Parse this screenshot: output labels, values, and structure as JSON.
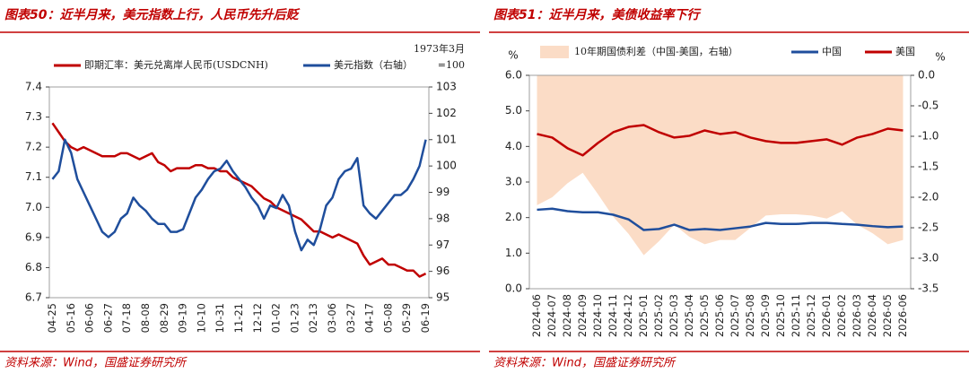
{
  "chart_data": [
    {
      "type": "line",
      "title": "图表50：近半月来，美元指数上行，人民币先升后贬",
      "source": "资料来源：Wind，国盛证券研究所",
      "y2_note": [
        "1973年3月",
        "=100"
      ],
      "categories": [
        "04-25",
        null,
        null,
        "05-16",
        null,
        null,
        "06-06",
        null,
        null,
        "06-27",
        null,
        null,
        "07-18",
        null,
        null,
        "08-08",
        null,
        null,
        "08-29",
        null,
        null,
        "09-19",
        null,
        null,
        "10-10",
        null,
        null,
        "10-31",
        null,
        null,
        "11-21",
        null,
        null,
        "12-12",
        null,
        null,
        "01-02",
        null,
        null,
        "01-23",
        null,
        null,
        "02-13",
        null,
        null,
        "03-06",
        null,
        null,
        "03-27",
        null,
        null,
        "04-17",
        null,
        null,
        "05-08",
        null,
        null,
        "05-29",
        null,
        null,
        "06-19"
      ],
      "series": [
        {
          "name": "即期汇率：美元兑离岸人民币(USDCNH)",
          "color": "#c00000",
          "values": [
            7.28,
            7.25,
            7.22,
            7.2,
            7.19,
            7.2,
            7.19,
            7.18,
            7.17,
            7.17,
            7.17,
            7.18,
            7.18,
            7.17,
            7.16,
            7.17,
            7.18,
            7.15,
            7.14,
            7.12,
            7.13,
            7.13,
            7.13,
            7.14,
            7.14,
            7.13,
            7.13,
            7.12,
            7.12,
            7.1,
            7.09,
            7.08,
            7.07,
            7.05,
            7.03,
            7.02,
            7.0,
            6.99,
            6.98,
            6.97,
            6.96,
            6.94,
            6.92,
            6.92,
            6.91,
            6.9,
            6.91,
            6.9,
            6.89,
            6.88,
            6.84,
            6.81,
            6.82,
            6.83,
            6.81,
            6.81,
            6.8,
            6.79,
            6.79,
            6.77,
            6.78
          ]
        },
        {
          "name": "美元指数（右轴）",
          "color": "#1f4e9c",
          "axis": "y2",
          "values": [
            99.5,
            99.8,
            101,
            100.5,
            99.5,
            99,
            98.5,
            98,
            97.5,
            97.3,
            97.5,
            98,
            98.2,
            98.8,
            98.5,
            98.3,
            98,
            97.8,
            97.8,
            97.5,
            97.5,
            97.6,
            98.2,
            98.8,
            99.1,
            99.5,
            99.8,
            99.9,
            100.2,
            99.8,
            99.5,
            99.2,
            98.8,
            98.5,
            98,
            98.5,
            98.4,
            98.9,
            98.5,
            97.5,
            96.8,
            97.2,
            97,
            97.6,
            98.5,
            98.8,
            99.5,
            99.8,
            99.9,
            100.3,
            98.5,
            98.2,
            98,
            98.3,
            98.6,
            98.9,
            98.9,
            99.1,
            99.5,
            100,
            101
          ]
        }
      ],
      "ylim": [
        6.7,
        7.4
      ],
      "yticks": [
        6.7,
        6.8,
        6.9,
        {
          "value": 7,
          "label": "7.0"
        },
        7.1,
        7.2,
        7.3,
        7.4
      ],
      "y2lim": [
        95,
        103
      ],
      "y2ticks": [
        95,
        96,
        97,
        98,
        99,
        100,
        101,
        102,
        103
      ]
    },
    {
      "type": "line",
      "title": "图表51：近半月来，美债收益率下行",
      "source": "资料来源：Wind，国盛证券研究所",
      "ylabel": "%",
      "y2label": "%",
      "categories": [
        "2024-06",
        "2024-07",
        "2024-08",
        "2024-09",
        "2024-10",
        "2024-11",
        "2024-12",
        "2025-01",
        "2025-02",
        "2025-03",
        "2025-04",
        "2025-05",
        "2025-06",
        "2025-07",
        "2025-08",
        "2025-09",
        "2025-10",
        "2025-11",
        "2025-12",
        "2026-01",
        "2026-02",
        "2026-03",
        "2026-04",
        "2026-05",
        "2026-06"
      ],
      "series": [
        {
          "name": "10年期国债利差（中国-美国，右轴）",
          "color": "#fbdcc6",
          "kind": "area",
          "axis": "y2",
          "values": [
            -2.13,
            -2.0,
            -1.77,
            -1.6,
            -1.95,
            -2.32,
            -2.6,
            -2.95,
            -2.72,
            -2.45,
            -2.65,
            -2.77,
            -2.7,
            -2.7,
            -2.5,
            -2.3,
            -2.28,
            -2.28,
            -2.3,
            -2.35,
            -2.23,
            -2.45,
            -2.59,
            -2.77,
            -2.7
          ]
        },
        {
          "name": "中国",
          "color": "#1f4e9c",
          "values": [
            2.22,
            2.25,
            2.18,
            2.15,
            2.15,
            2.08,
            1.95,
            1.65,
            1.68,
            1.8,
            1.65,
            1.68,
            1.65,
            1.7,
            1.75,
            1.85,
            1.82,
            1.82,
            1.85,
            1.85,
            1.82,
            1.8,
            1.76,
            1.73,
            1.75
          ]
        },
        {
          "name": "美国",
          "color": "#c00000",
          "values": [
            4.35,
            4.25,
            3.95,
            3.75,
            4.1,
            4.4,
            4.55,
            4.6,
            4.4,
            4.25,
            4.3,
            4.45,
            4.35,
            4.4,
            4.25,
            4.15,
            4.1,
            4.1,
            4.15,
            4.2,
            4.05,
            4.25,
            4.35,
            4.5,
            4.45
          ]
        }
      ],
      "ylim": [
        0,
        6
      ],
      "yticks": [
        {
          "value": 0,
          "label": "0.0"
        },
        {
          "value": 1,
          "label": "1.0"
        },
        {
          "value": 2,
          "label": "2.0"
        },
        {
          "value": 3,
          "label": "3.0"
        },
        {
          "value": 4,
          "label": "4.0"
        },
        {
          "value": 5,
          "label": "5.0"
        },
        {
          "value": 6,
          "label": "6.0"
        }
      ],
      "y2lim": [
        -3.5,
        0
      ],
      "y2ticks": [
        -3.5,
        {
          "value": -3,
          "label": "-3.0"
        },
        -2.5,
        {
          "value": -2,
          "label": "-2.0"
        },
        -1.5,
        {
          "value": -1,
          "label": "-1.0"
        },
        -0.5,
        {
          "value": 0,
          "label": "0.0"
        }
      ]
    }
  ]
}
